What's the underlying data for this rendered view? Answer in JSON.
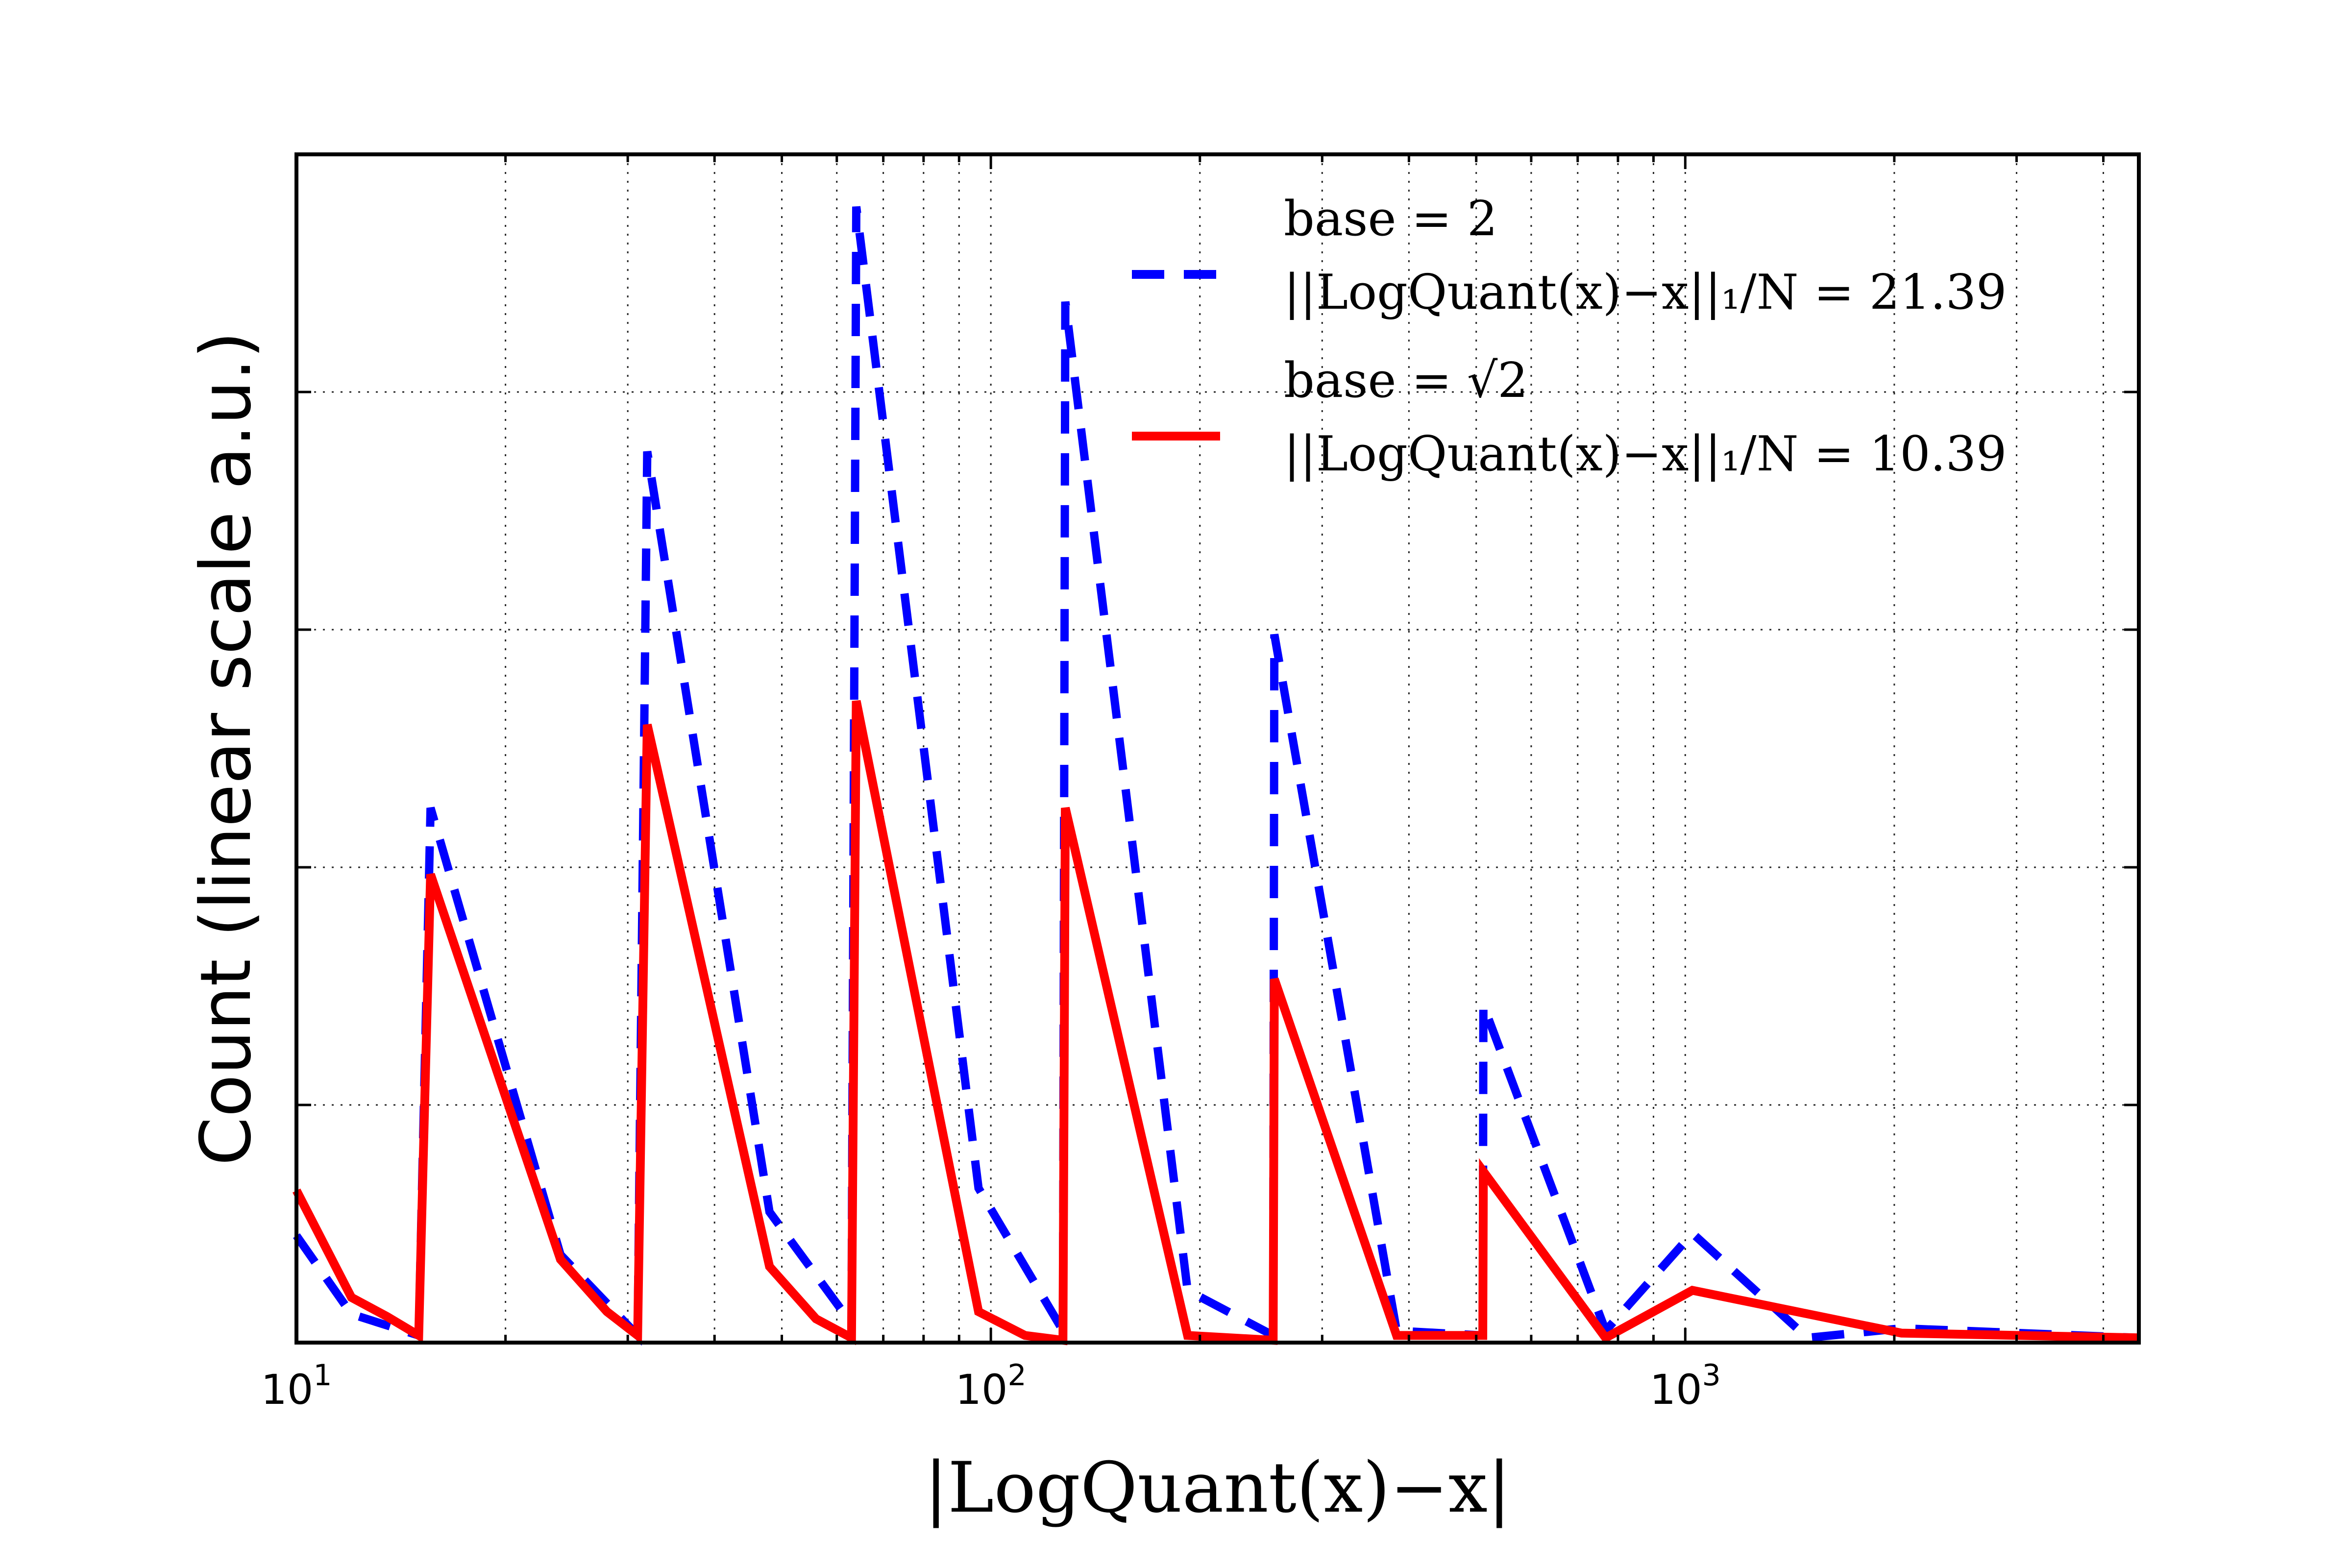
{
  "chart_data": {
    "type": "line",
    "title": "",
    "xlabel": "|LogQuant(x)−x|",
    "ylabel": "Count (linear scale a.u.)",
    "xscale": "log",
    "xlim": [
      10,
      4500
    ],
    "ylim": [
      0,
      5.0
    ],
    "grid": true,
    "legend_position": "top-right",
    "x_ticks": [
      {
        "value": 10,
        "base": "10",
        "exp": "1"
      },
      {
        "value": 100,
        "base": "10",
        "exp": "2"
      },
      {
        "value": 1000,
        "base": "10",
        "exp": "3"
      }
    ],
    "y_gridlines": [
      1,
      2,
      3,
      4
    ],
    "series": [
      {
        "name": "base=2",
        "legend_label_1": "base = 2",
        "legend_label_2": "||LogQuant(x)−x||₁/N = 21.39",
        "color": "#0000ff",
        "style": "dashed",
        "points": [
          [
            10,
            0.45
          ],
          [
            12,
            0.12
          ],
          [
            15,
            0.03
          ],
          [
            15.6,
            2.25
          ],
          [
            24,
            0.37
          ],
          [
            31,
            0.03
          ],
          [
            32,
            3.75
          ],
          [
            48,
            0.55
          ],
          [
            63,
            0.08
          ],
          [
            64,
            4.78
          ],
          [
            96,
            0.65
          ],
          [
            127,
            0.05
          ],
          [
            128,
            4.38
          ],
          [
            192,
            0.22
          ],
          [
            255,
            0.03
          ],
          [
            256,
            2.98
          ],
          [
            384,
            0.05
          ],
          [
            511,
            0.03
          ],
          [
            512,
            1.42
          ],
          [
            768,
            0.05
          ],
          [
            1024,
            0.46
          ],
          [
            1500,
            0.02
          ],
          [
            2048,
            0.06
          ],
          [
            4500,
            0.02
          ]
        ]
      },
      {
        "name": "base=sqrt(2)",
        "legend_label_1": "base = √2",
        "legend_label_2": "||LogQuant(x)−x||₁/N = 10.39",
        "color": "#ff0000",
        "style": "solid",
        "points": [
          [
            10,
            0.64
          ],
          [
            12,
            0.19
          ],
          [
            13.5,
            0.11
          ],
          [
            15,
            0.03
          ],
          [
            15.6,
            1.97
          ],
          [
            24,
            0.35
          ],
          [
            28,
            0.13
          ],
          [
            31,
            0.03
          ],
          [
            32,
            2.6
          ],
          [
            48,
            0.32
          ],
          [
            56,
            0.1
          ],
          [
            63,
            0.02
          ],
          [
            64,
            2.7
          ],
          [
            96,
            0.13
          ],
          [
            112,
            0.03
          ],
          [
            127,
            0.01
          ],
          [
            128,
            2.25
          ],
          [
            192,
            0.03
          ],
          [
            255,
            0.01
          ],
          [
            256,
            1.53
          ],
          [
            384,
            0.03
          ],
          [
            511,
            0.03
          ],
          [
            512,
            0.72
          ],
          [
            768,
            0.02
          ],
          [
            1024,
            0.22
          ],
          [
            2048,
            0.04
          ],
          [
            4500,
            0.02
          ]
        ]
      }
    ]
  }
}
